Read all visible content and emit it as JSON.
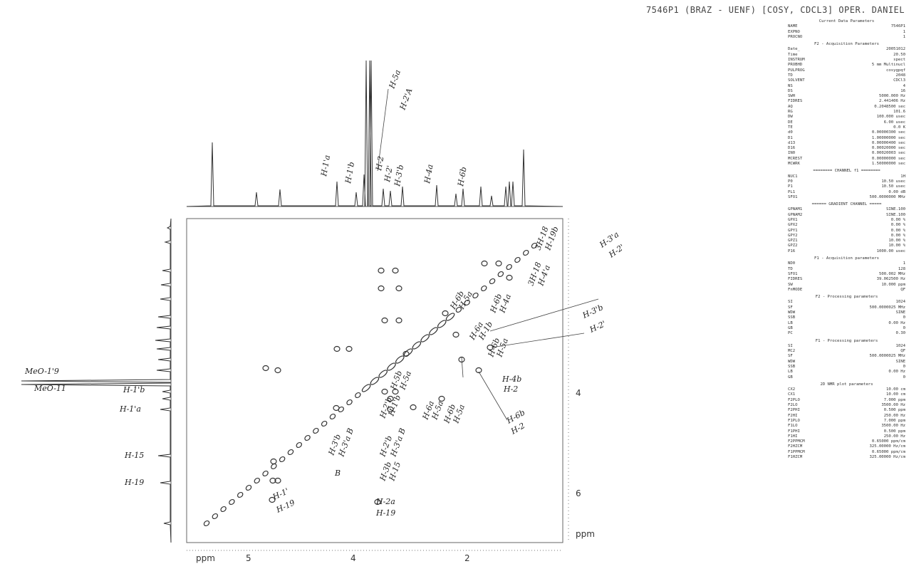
{
  "header": {
    "title": "7546P1 (BRAZ - UENF) [COSY, CDCL3] OPER. DANIEL"
  },
  "axes": {
    "x_labels": [
      "ppm",
      "5",
      "4",
      "2"
    ],
    "y_labels": [
      "4",
      "6",
      "ppm"
    ]
  },
  "annotations": {
    "top": [
      "H-1'a",
      "H-1'b",
      "H-5a",
      "H-2'A",
      "H-2",
      "H-2'",
      "H-3'b",
      "H-4a",
      "H-6b"
    ],
    "left": [
      "MeO-1'9",
      "MeO-11",
      "H-1'b",
      "H-1'a",
      "H-15",
      "H-19"
    ],
    "plot": [
      "H-1'",
      "H-19",
      "H-3'b",
      "H-3'a B",
      "B",
      "H-2'b",
      "H-1'b",
      "H-2'b",
      "H-3'a B",
      "H-3b",
      "H-15",
      "H-2a",
      "H-19",
      "H-5b",
      "H-5a",
      "H-6a",
      "H-5a",
      "H-6b",
      "H-5a",
      "H-6b",
      "H-5a",
      "H-6a",
      "H-1b",
      "H-6b",
      "H-4a",
      "3H-18",
      "H-4'a",
      "3H-18",
      "H-19b",
      "H-6b",
      "H-5a",
      "H-4b",
      "H-2",
      "H-6b",
      "H-2",
      "H-3'a",
      "H-2'",
      "H-3'b",
      "H-2'"
    ]
  },
  "parameters": [
    {
      "title": "Current Data Parameters",
      "rows": [
        [
          "NAME",
          "7546P1"
        ],
        [
          "EXPNO",
          "1"
        ],
        [
          "PROCNO",
          "1"
        ]
      ]
    },
    {
      "title": "F2 - Acquisition Parameters",
      "rows": [
        [
          "Date_",
          "20051012"
        ],
        [
          "Time",
          "20.50"
        ],
        [
          "INSTRUM",
          "spect"
        ],
        [
          "PROBHD",
          "5 mm Multinucl"
        ],
        [
          "PULPROG",
          "cosygpqf"
        ],
        [
          "TD",
          "2048"
        ],
        [
          "SOLVENT",
          "CDCl3"
        ],
        [
          "NS",
          "4"
        ],
        [
          "DS",
          "16"
        ],
        [
          "SWH",
          "5000.000 Hz"
        ],
        [
          "FIDRES",
          "2.441406 Hz"
        ],
        [
          "AQ",
          "0.2048500 sec"
        ],
        [
          "RG",
          "101.6"
        ],
        [
          "DW",
          "100.000 usec"
        ],
        [
          "DE",
          "6.00 usec"
        ],
        [
          "TE",
          "0.0 K"
        ],
        [
          "d0",
          "0.00000300 sec"
        ],
        [
          "D1",
          "1.00000000 sec"
        ],
        [
          "d13",
          "0.00000400 sec"
        ],
        [
          "D16",
          "0.00020000 sec"
        ],
        [
          "IN0",
          "0.00020003 sec"
        ],
        [
          "MCREST",
          "0.00000000 sec"
        ],
        [
          "MCWRK",
          "1.50000000 sec"
        ]
      ]
    },
    {
      "title": "======== CHANNEL f1 ========",
      "rows": [
        [
          "NUC1",
          "1H"
        ],
        [
          "P0",
          "10.50 usec"
        ],
        [
          "P1",
          "10.50 usec"
        ],
        [
          "PL1",
          "0.00 dB"
        ],
        [
          "SFO1",
          "500.0000000 MHz"
        ]
      ]
    },
    {
      "title": "====== GRADIENT CHANNEL =====",
      "rows": [
        [
          "GPNAM1",
          "SINE.100"
        ],
        [
          "GPNAM2",
          "SINE.100"
        ],
        [
          "GPX1",
          "0.00 %"
        ],
        [
          "GPX2",
          "0.00 %"
        ],
        [
          "GPY1",
          "0.00 %"
        ],
        [
          "GPY2",
          "0.00 %"
        ],
        [
          "GPZ1",
          "10.00 %"
        ],
        [
          "GPZ2",
          "10.00 %"
        ],
        [
          "P16",
          "1000.00 usec"
        ]
      ]
    },
    {
      "title": "F1 - Acquisition parameters",
      "rows": [
        [
          "ND0",
          "1"
        ],
        [
          "TD",
          "128"
        ],
        [
          "SFO1",
          "500.002 MHz"
        ],
        [
          "FIDRES",
          "39.062500 Hz"
        ],
        [
          "SW",
          "10.000 ppm"
        ],
        [
          "FnMODE",
          "QF"
        ]
      ]
    },
    {
      "title": "F2 - Processing parameters",
      "rows": [
        [
          "SI",
          "1024"
        ],
        [
          "SF",
          "500.0000025 MHz"
        ],
        [
          "WDW",
          "SINE"
        ],
        [
          "SSB",
          "0"
        ],
        [
          "LB",
          "0.00 Hz"
        ],
        [
          "GB",
          "0"
        ],
        [
          "PC",
          "0.30"
        ]
      ]
    },
    {
      "title": "F1 - Processing parameters",
      "rows": [
        [
          "SI",
          "1024"
        ],
        [
          "MC2",
          "QF"
        ],
        [
          "SF",
          "500.0000025 MHz"
        ],
        [
          "WDW",
          "SINE"
        ],
        [
          "SSB",
          "0"
        ],
        [
          "LB",
          "0.00 Hz"
        ],
        [
          "GB",
          "0"
        ]
      ]
    },
    {
      "title": "2D NMR plot parameters",
      "rows": [
        [
          "CX2",
          "10.00 cm"
        ],
        [
          "CX1",
          "10.00 cm"
        ],
        [
          "F2PLO",
          "7.000 ppm"
        ],
        [
          "F2LO",
          "3500.00 Hz"
        ],
        [
          "F2PHI",
          "0.500 ppm"
        ],
        [
          "F2HI",
          "250.00 Hz"
        ],
        [
          "F1PLO",
          "7.000 ppm"
        ],
        [
          "F1LO",
          "3500.00 Hz"
        ],
        [
          "F1PHI",
          "0.500 ppm"
        ],
        [
          "F1HI",
          "250.00 Hz"
        ],
        [
          "F2PPMCM",
          "0.65000 ppm/cm"
        ],
        [
          "F2HZCM",
          "325.00000 Hz/cm"
        ],
        [
          "F1PPMCM",
          "0.65000 ppm/cm"
        ],
        [
          "F1HZCM",
          "325.00000 Hz/cm"
        ]
      ]
    }
  ]
}
